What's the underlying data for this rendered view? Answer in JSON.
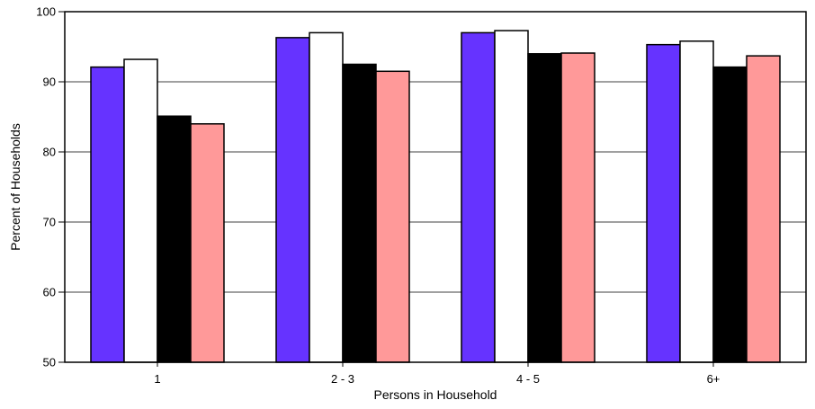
{
  "chart_data": {
    "type": "bar",
    "title": "",
    "xlabel": "Persons in Household",
    "ylabel": "Percent of Households",
    "categories": [
      "1",
      "2 - 3",
      "4 - 5",
      "6+"
    ],
    "ylim": [
      50,
      100
    ],
    "yticks": [
      "50",
      "60",
      "70",
      "80",
      "90",
      "100"
    ],
    "grid": true,
    "legend": "none",
    "series": [
      {
        "color": "#6633ff",
        "values": [
          92.1,
          96.3,
          97.0,
          95.3
        ]
      },
      {
        "color": "#ffffff",
        "values": [
          93.2,
          97.0,
          97.3,
          95.8
        ]
      },
      {
        "color": "#000000",
        "values": [
          85.1,
          92.5,
          94.0,
          92.1
        ]
      },
      {
        "color": "#ff9999",
        "values": [
          84.0,
          91.5,
          94.1,
          93.7
        ]
      }
    ]
  }
}
